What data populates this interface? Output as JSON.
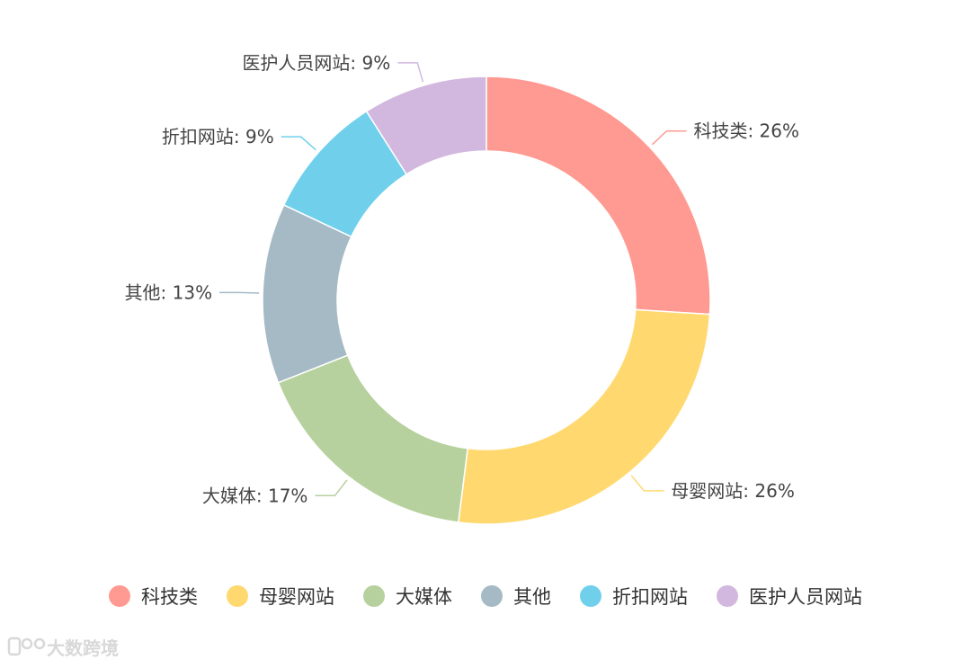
{
  "chart_data": {
    "type": "pie",
    "variant": "donut",
    "slices": [
      {
        "name": "科技类",
        "value": 26,
        "label": "科技类: 26%",
        "color": "#ff9a92"
      },
      {
        "name": "母婴网站",
        "value": 26,
        "label": "母婴网站: 26%",
        "color": "#ffd970"
      },
      {
        "name": "大媒体",
        "value": 17,
        "label": "大媒体: 17%",
        "color": "#b6d19d"
      },
      {
        "name": "其他",
        "value": 13,
        "label": "其他: 13%",
        "color": "#a6bac6"
      },
      {
        "name": "折扣网站",
        "value": 9,
        "label": "折扣网站: 9%",
        "color": "#70d0ec"
      },
      {
        "name": "医护人员网站",
        "value": 9,
        "label": "医护人员网站: 9%",
        "color": "#d2b8df"
      }
    ],
    "legend_position": "bottom",
    "start": "top",
    "direction": "clockwise"
  },
  "watermark": {
    "text": "大数跨境",
    "logo_icon": "brand-logo-icon"
  }
}
